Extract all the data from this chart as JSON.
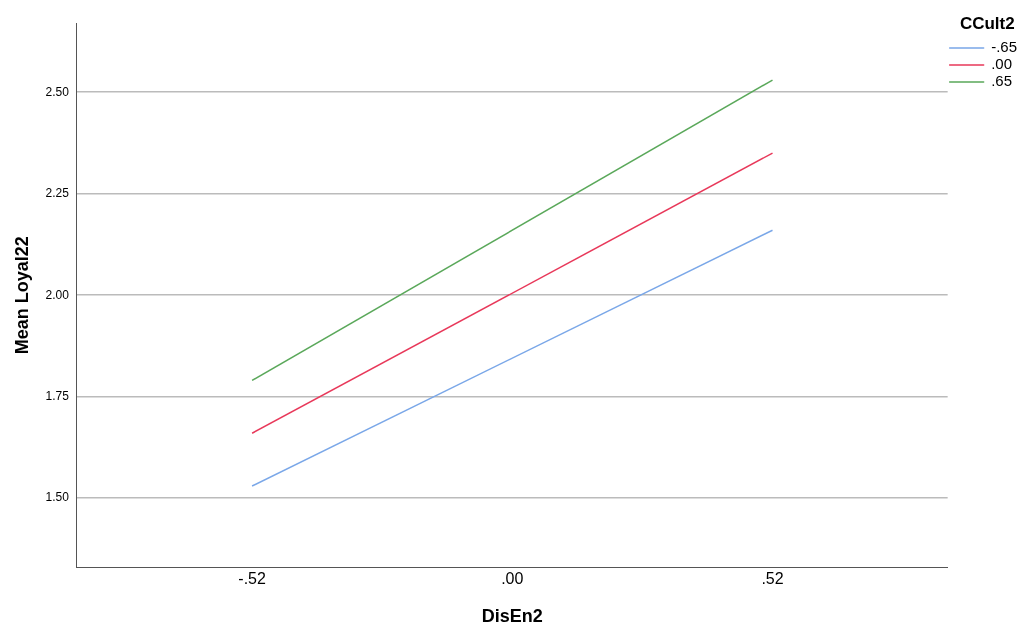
{
  "chart_data": {
    "type": "line",
    "xlabel": "DisEn2",
    "ylabel": "Mean Loyal22",
    "legend_title": "CCult2",
    "x": [
      -0.52,
      0.52
    ],
    "xlim": [
      -0.87,
      0.87
    ],
    "xticks": [
      {
        "value": -0.52,
        "label": "-.52"
      },
      {
        "value": 0,
        "label": ".00"
      },
      {
        "value": 0.52,
        "label": ".52"
      }
    ],
    "ylim": [
      1.33,
      2.67
    ],
    "yticks": [
      {
        "value": 1.5,
        "label": "1.50"
      },
      {
        "value": 1.75,
        "label": "1.75"
      },
      {
        "value": 2.0,
        "label": "2.00"
      },
      {
        "value": 2.25,
        "label": "2.25"
      },
      {
        "value": 2.5,
        "label": "2.50"
      }
    ],
    "series": [
      {
        "name": "-.65",
        "color": "#7aa7e8",
        "values": [
          1.53,
          2.16
        ]
      },
      {
        "name": ".00",
        "color": "#e8385a",
        "values": [
          1.66,
          2.35
        ]
      },
      {
        "name": ".65",
        "color": "#5aa85a",
        "values": [
          1.79,
          2.53
        ]
      }
    ],
    "grid": "y",
    "legend": "top right",
    "marker": "none",
    "line_style": "solid"
  }
}
